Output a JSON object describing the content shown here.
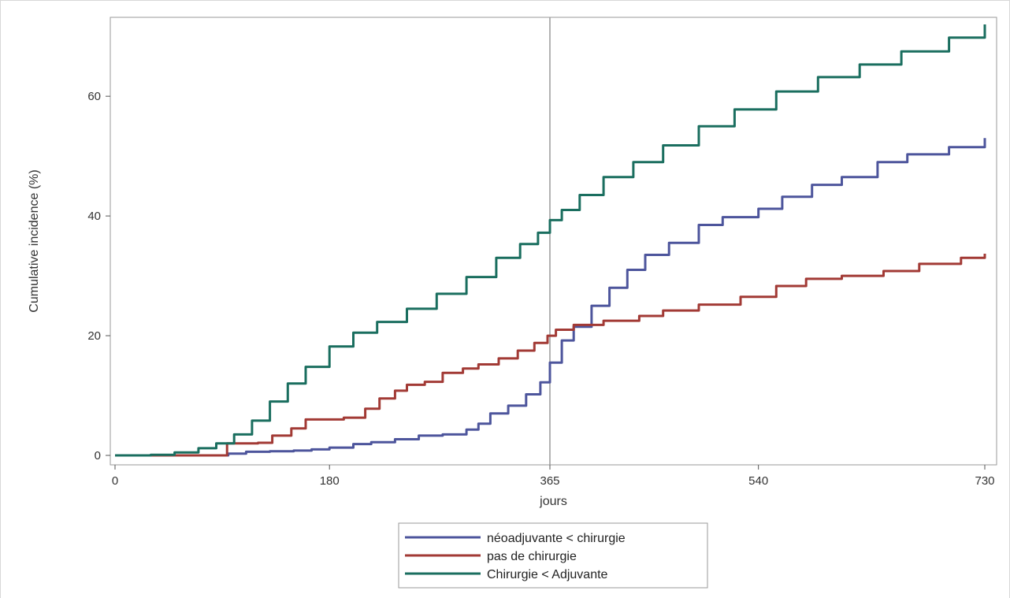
{
  "chart_data": {
    "type": "line",
    "xlabel": "jours",
    "ylabel": "Cumulative incidence (%)",
    "xlim": [
      0,
      730
    ],
    "ylim": [
      0,
      72
    ],
    "x_ticks": [
      0,
      180,
      365,
      540,
      730
    ],
    "y_ticks": [
      0,
      20,
      40,
      60
    ],
    "reference_line_x": 365,
    "grid": false,
    "legend_position": "bottom-center",
    "series": [
      {
        "name": "néoadjuvante < chirurgie",
        "color": "#4d559c",
        "points": [
          [
            0,
            0
          ],
          [
            60,
            0
          ],
          [
            85,
            0
          ],
          [
            95,
            0.3
          ],
          [
            110,
            0.6
          ],
          [
            130,
            0.7
          ],
          [
            150,
            0.8
          ],
          [
            165,
            1.0
          ],
          [
            180,
            1.3
          ],
          [
            200,
            1.9
          ],
          [
            215,
            2.2
          ],
          [
            235,
            2.7
          ],
          [
            255,
            3.3
          ],
          [
            275,
            3.5
          ],
          [
            295,
            4.3
          ],
          [
            305,
            5.3
          ],
          [
            315,
            7.0
          ],
          [
            330,
            8.3
          ],
          [
            345,
            10.2
          ],
          [
            357,
            12.2
          ],
          [
            365,
            15.5
          ],
          [
            375,
            19.2
          ],
          [
            385,
            21.5
          ],
          [
            400,
            25.0
          ],
          [
            415,
            28.0
          ],
          [
            430,
            31.0
          ],
          [
            445,
            33.5
          ],
          [
            465,
            35.5
          ],
          [
            490,
            38.5
          ],
          [
            510,
            39.8
          ],
          [
            540,
            41.2
          ],
          [
            560,
            43.2
          ],
          [
            585,
            45.2
          ],
          [
            610,
            46.5
          ],
          [
            640,
            49.0
          ],
          [
            665,
            50.3
          ],
          [
            700,
            51.5
          ],
          [
            730,
            53.0
          ]
        ]
      },
      {
        "name": "pas de chirurgie",
        "color": "#a23a35",
        "points": [
          [
            0,
            0
          ],
          [
            60,
            0
          ],
          [
            90,
            0
          ],
          [
            94,
            2.0
          ],
          [
            120,
            2.1
          ],
          [
            132,
            3.3
          ],
          [
            148,
            4.5
          ],
          [
            160,
            6.0
          ],
          [
            192,
            6.3
          ],
          [
            210,
            7.8
          ],
          [
            222,
            9.5
          ],
          [
            235,
            10.8
          ],
          [
            245,
            11.8
          ],
          [
            260,
            12.3
          ],
          [
            275,
            13.8
          ],
          [
            292,
            14.5
          ],
          [
            305,
            15.2
          ],
          [
            322,
            16.2
          ],
          [
            338,
            17.5
          ],
          [
            352,
            18.8
          ],
          [
            363,
            20.0
          ],
          [
            370,
            21.0
          ],
          [
            385,
            21.8
          ],
          [
            410,
            22.5
          ],
          [
            440,
            23.3
          ],
          [
            460,
            24.2
          ],
          [
            490,
            25.2
          ],
          [
            525,
            26.5
          ],
          [
            555,
            28.3
          ],
          [
            580,
            29.5
          ],
          [
            610,
            30.0
          ],
          [
            645,
            30.8
          ],
          [
            675,
            32.0
          ],
          [
            710,
            33.0
          ],
          [
            730,
            33.7
          ]
        ]
      },
      {
        "name": "Chirurgie < Adjuvante",
        "color": "#1a6e5f",
        "points": [
          [
            0,
            0
          ],
          [
            30,
            0.1
          ],
          [
            50,
            0.5
          ],
          [
            70,
            1.2
          ],
          [
            85,
            2.0
          ],
          [
            100,
            3.5
          ],
          [
            115,
            5.8
          ],
          [
            130,
            9.0
          ],
          [
            145,
            12.0
          ],
          [
            160,
            14.8
          ],
          [
            180,
            18.2
          ],
          [
            200,
            20.5
          ],
          [
            220,
            22.3
          ],
          [
            245,
            24.5
          ],
          [
            270,
            27.0
          ],
          [
            295,
            29.8
          ],
          [
            320,
            33.0
          ],
          [
            340,
            35.3
          ],
          [
            355,
            37.2
          ],
          [
            365,
            39.3
          ],
          [
            375,
            41.0
          ],
          [
            390,
            43.5
          ],
          [
            410,
            46.5
          ],
          [
            435,
            49.0
          ],
          [
            460,
            51.8
          ],
          [
            490,
            55.0
          ],
          [
            520,
            57.8
          ],
          [
            555,
            60.8
          ],
          [
            590,
            63.2
          ],
          [
            625,
            65.3
          ],
          [
            660,
            67.5
          ],
          [
            700,
            69.8
          ],
          [
            730,
            72.0
          ]
        ]
      }
    ]
  }
}
